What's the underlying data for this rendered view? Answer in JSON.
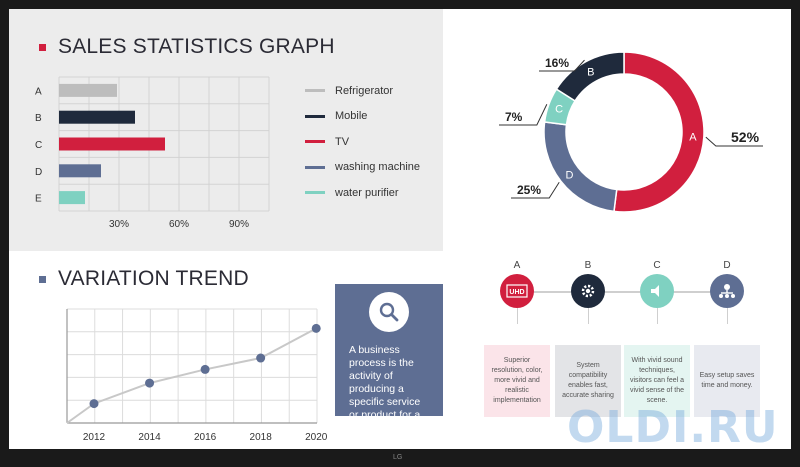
{
  "sales": {
    "title": "SALES STATISTICS GRAPH",
    "legend": [
      {
        "label": "Refrigerator",
        "color": "#bdbdbd"
      },
      {
        "label": "Mobile",
        "color": "#1f2a3c"
      },
      {
        "label": "TV",
        "color": "#d11f3e"
      },
      {
        "label": "washing machine",
        "color": "#5e6e93"
      },
      {
        "label": "water purifier",
        "color": "#7fd1c1"
      }
    ]
  },
  "trend": {
    "title": "VARIATION TREND"
  },
  "info_box": {
    "text": "A business process is the activity of producing a specific service or product for a customer."
  },
  "features": [
    {
      "letter": "A",
      "icon": "uhd-icon",
      "icon_text": "UHD",
      "color": "#d11f3e",
      "card_bg": "#fbe4e9",
      "text": "Superior resolution, color, more vivid and realistic implementation"
    },
    {
      "letter": "B",
      "icon": "gear-icon",
      "icon_text": "",
      "color": "#1f2a3c",
      "card_bg": "#e3e4e7",
      "text": "System compatibility enables fast, accurate sharing"
    },
    {
      "letter": "C",
      "icon": "speaker-icon",
      "icon_text": "",
      "color": "#7fd1c1",
      "card_bg": "#e4f5f1",
      "text": "With vivid sound techniques, visitors can feel a vivid sense of the scene."
    },
    {
      "letter": "D",
      "icon": "network-icon",
      "icon_text": "",
      "color": "#5e6e93",
      "card_bg": "#e8eaf0",
      "text": "Easy setup saves time and money."
    }
  ],
  "brand": "LG",
  "watermark": "OLDI.RU",
  "colors": {
    "red": "#d11f3e",
    "navy": "#1f2a3c",
    "grey": "#bdbdbd",
    "slate": "#5e6e93",
    "mint": "#7fd1c1"
  },
  "chart_data": [
    {
      "type": "bar",
      "orientation": "horizontal",
      "categories": [
        "A",
        "B",
        "C",
        "D",
        "E"
      ],
      "values": [
        29,
        38,
        53,
        21,
        13
      ],
      "colors": [
        "#bdbdbd",
        "#1f2a3c",
        "#d11f3e",
        "#5e6e93",
        "#7fd1c1"
      ],
      "xticks": [
        "30%",
        "60%",
        "90%"
      ],
      "xtick_values": [
        30,
        60,
        90
      ],
      "xlim": [
        0,
        105
      ],
      "grid": true
    },
    {
      "type": "pie",
      "donut": true,
      "slices": [
        {
          "label": "A",
          "value": 52,
          "pct_label": "52%",
          "color": "#d11f3e"
        },
        {
          "label": "D",
          "value": 25,
          "pct_label": "25%",
          "color": "#5e6e93"
        },
        {
          "label": "C",
          "value": 7,
          "pct_label": "7%",
          "color": "#7fd1c1"
        },
        {
          "label": "B",
          "value": 16,
          "pct_label": "16%",
          "color": "#1f2a3c"
        }
      ]
    },
    {
      "type": "line",
      "x": [
        "2012",
        "2014",
        "2016",
        "2018",
        "2020"
      ],
      "values": [
        17,
        35,
        47,
        57,
        83
      ],
      "ylim": [
        0,
        100
      ],
      "color": "#5e6e93",
      "grid": true
    }
  ]
}
